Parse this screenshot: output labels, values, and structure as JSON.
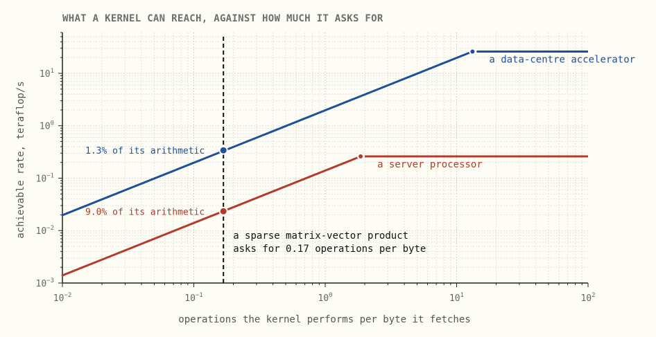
{
  "chart_data": {
    "type": "line",
    "title": "WHAT A KERNEL CAN REACH, AGAINST HOW MUCH IT ASKS FOR",
    "xlabel": "operations the kernel performs per byte it fetches",
    "ylabel": "achievable rate, teraflop/s",
    "x_scale": "log",
    "y_scale": "log",
    "xlim": [
      0.01,
      100
    ],
    "ylim": [
      0.001,
      60
    ],
    "grid": true,
    "x_ticks": [
      {
        "value": 0.01,
        "base": "10",
        "exp": "−2"
      },
      {
        "value": 0.1,
        "base": "10",
        "exp": "−1"
      },
      {
        "value": 1,
        "base": "10",
        "exp": "0"
      },
      {
        "value": 10,
        "base": "10",
        "exp": "1"
      },
      {
        "value": 100,
        "base": "10",
        "exp": "2"
      }
    ],
    "y_ticks": [
      {
        "value": 0.001,
        "base": "10",
        "exp": "−3"
      },
      {
        "value": 0.01,
        "base": "10",
        "exp": "−2"
      },
      {
        "value": 0.1,
        "base": "10",
        "exp": "−1"
      },
      {
        "value": 1,
        "base": "10",
        "exp": "0"
      },
      {
        "value": 10,
        "base": "10",
        "exp": "1"
      }
    ],
    "series": [
      {
        "name": "a data-centre accelerator",
        "color": "#1f4e9c",
        "ridge_x": 13.2,
        "peak": 26,
        "kernel_value": 0.34,
        "kernel_label": "1.3% of its arithmetic"
      },
      {
        "name": "a server processor",
        "color": "#b53a2a",
        "ridge_x": 1.86,
        "peak": 0.26,
        "kernel_value": 0.0234,
        "kernel_label": "9.0% of its arithmetic"
      }
    ],
    "kernel": {
      "x": 0.168,
      "annotation_lines": [
        "a sparse matrix-vector product",
        "asks for 0.17 operations per byte"
      ]
    }
  }
}
